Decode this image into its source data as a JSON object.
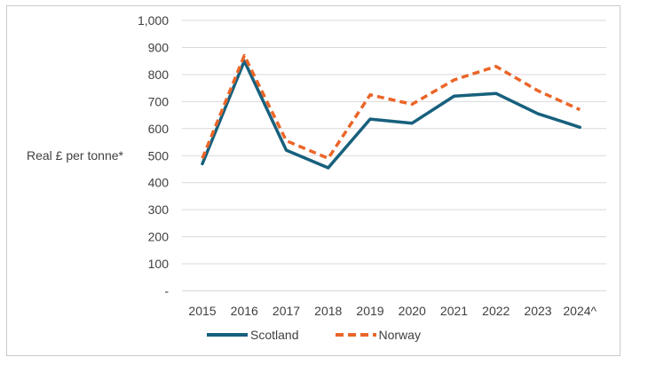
{
  "figure": {
    "background": "#ffffff",
    "border_color": "#c9c9c9"
  },
  "chart_data": {
    "type": "line",
    "title": "",
    "xlabel": "",
    "ylabel": "Real £ per tonne*",
    "categories": [
      "2015",
      "2016",
      "2017",
      "2018",
      "2019",
      "2020",
      "2021",
      "2022",
      "2023",
      "2024^"
    ],
    "series": [
      {
        "name": "Scotland",
        "style": "solid",
        "color": "#17607d",
        "values": [
          470,
          850,
          520,
          455,
          635,
          620,
          720,
          730,
          655,
          605
        ]
      },
      {
        "name": "Norway",
        "style": "dashed",
        "color": "#eb6528",
        "values": [
          490,
          870,
          555,
          490,
          725,
          690,
          780,
          830,
          740,
          670
        ]
      }
    ],
    "ylim": [
      0,
      1000
    ],
    "ytick_values": [
      0,
      100,
      200,
      300,
      400,
      500,
      600,
      700,
      800,
      900,
      1000
    ],
    "ytick_labels": [
      "-",
      "100",
      "200",
      "300",
      "400",
      "500",
      "600",
      "700",
      "800",
      "900",
      "1,000"
    ],
    "grid": true,
    "gridline_color": "#d9d9d9",
    "axis_text_color": "#404040",
    "legend_position": "bottom"
  }
}
